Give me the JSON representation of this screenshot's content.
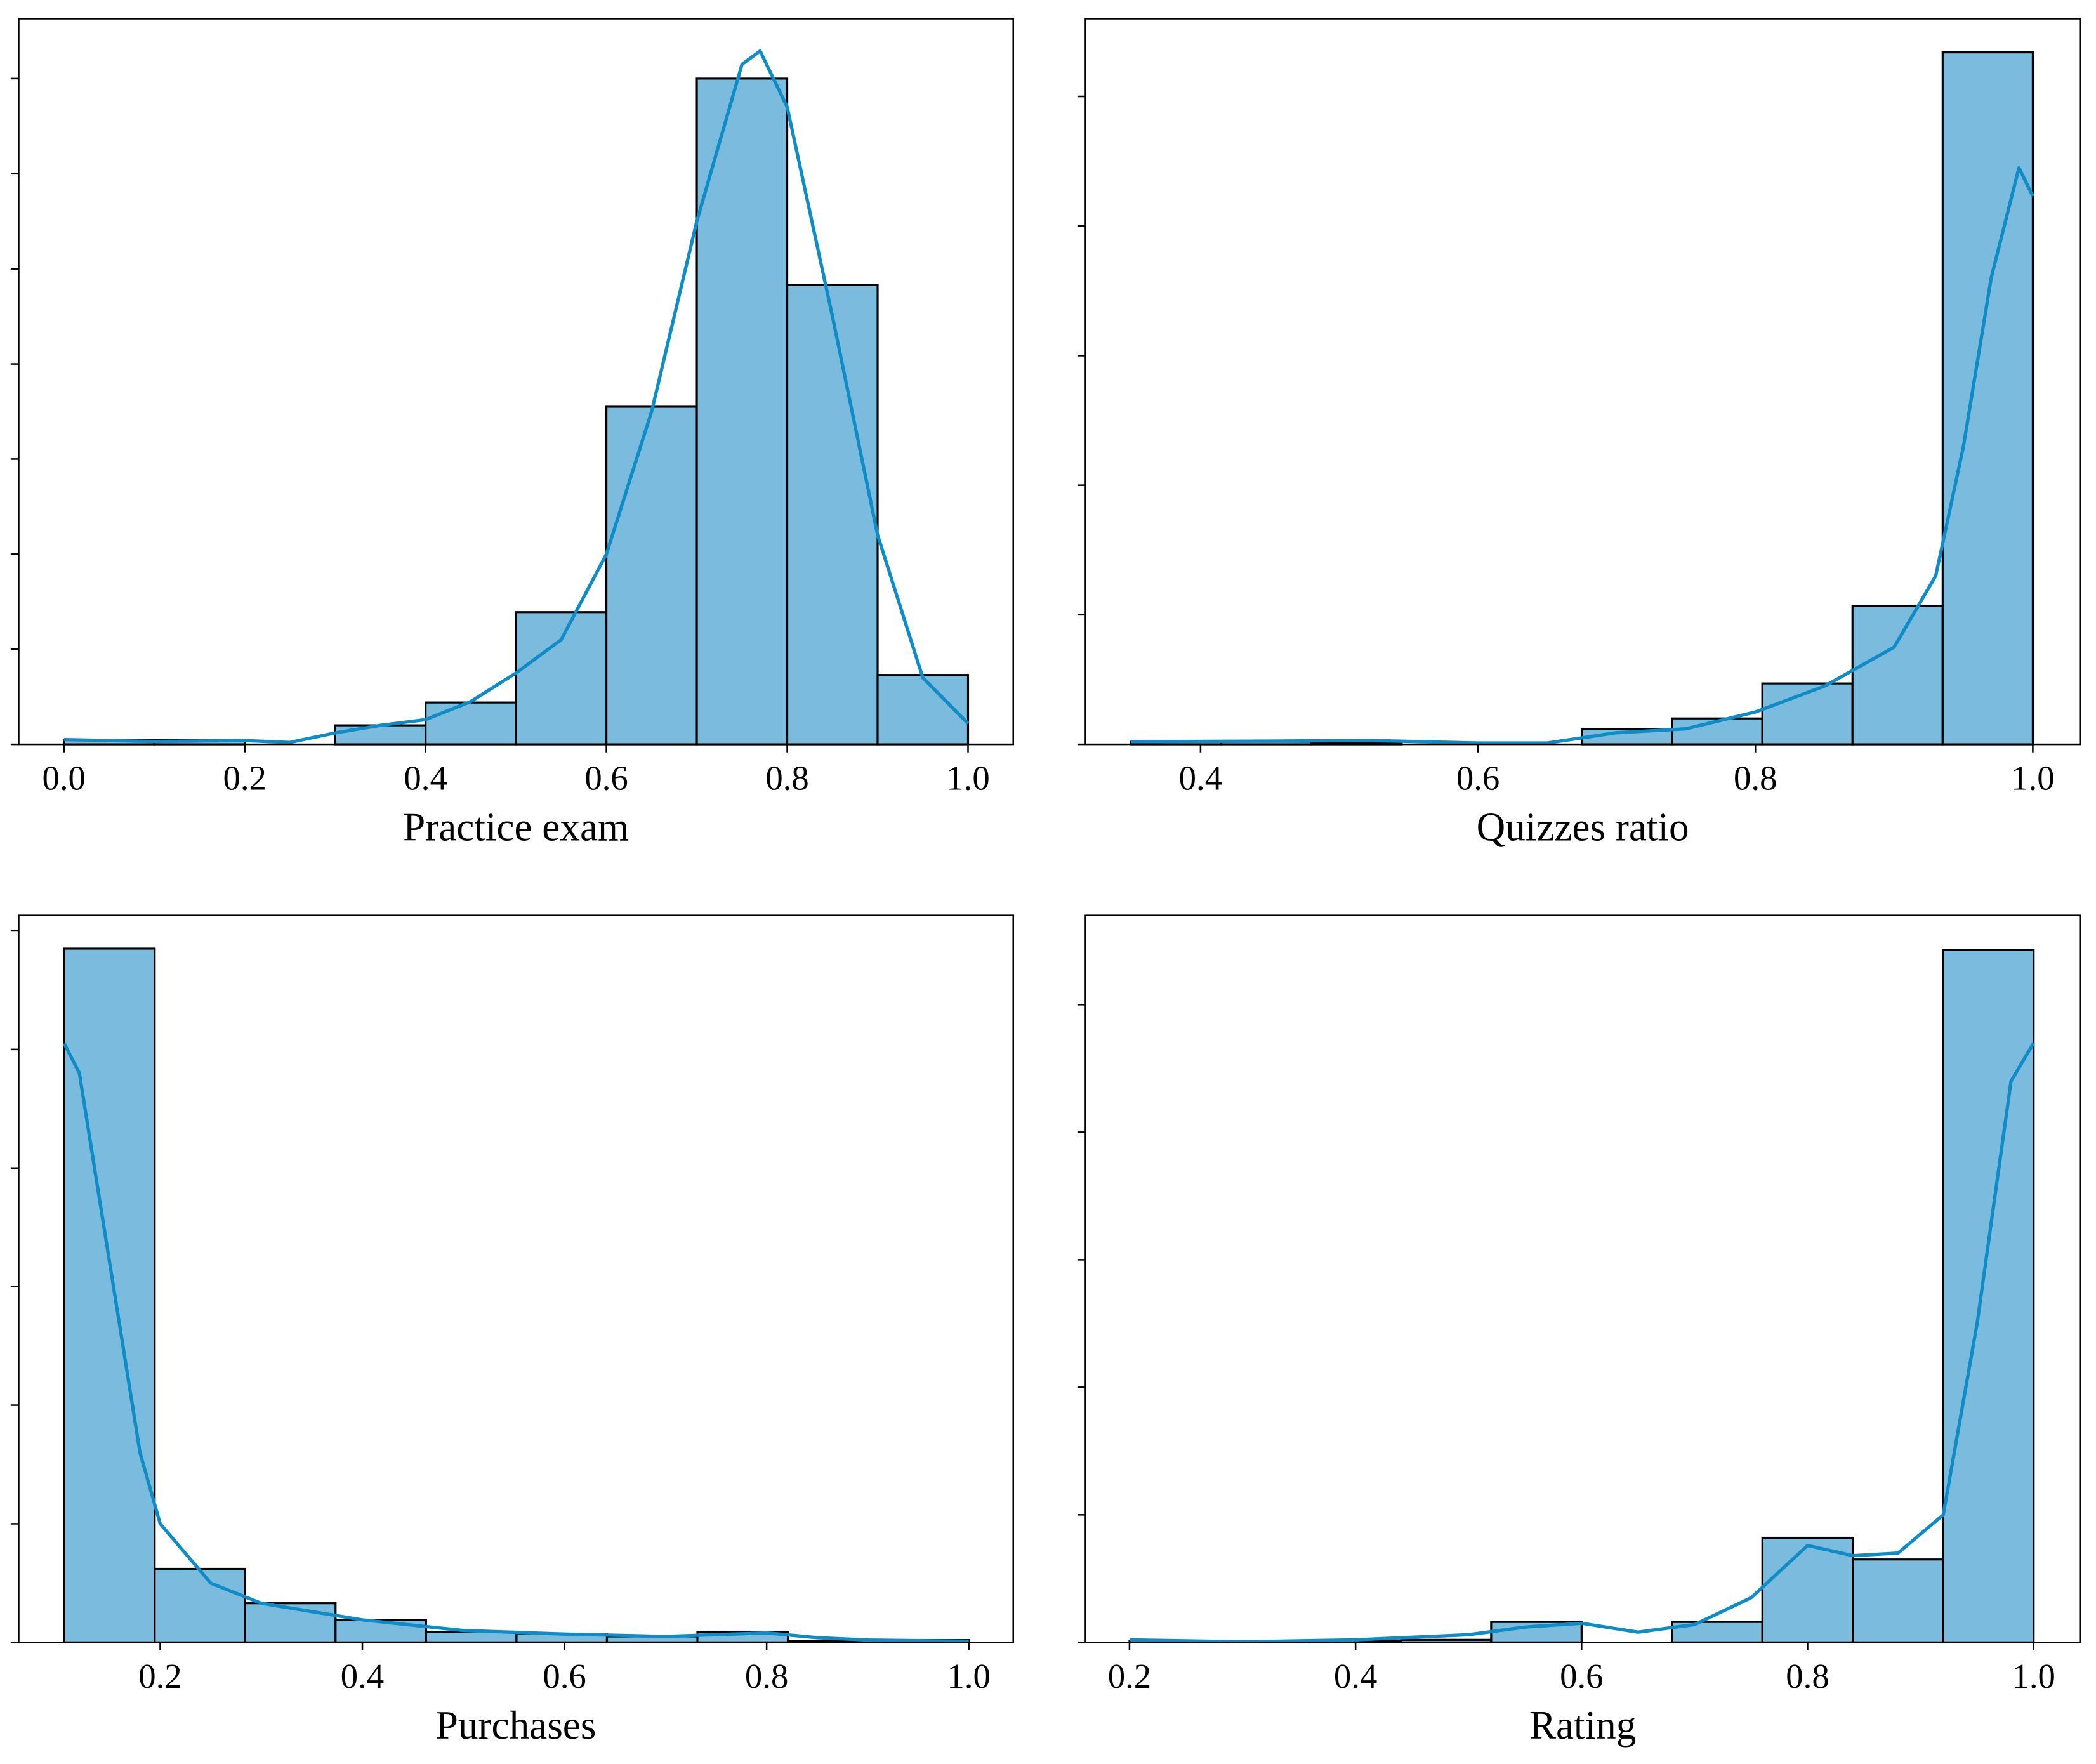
{
  "chart_data": [
    {
      "type": "histogram",
      "xlabel": "Practice exam",
      "color": "#7bbbdd",
      "edgecolor": "#000000",
      "bins": [
        0,
        0.1,
        0.2,
        0.3,
        0.4,
        0.5,
        0.6,
        0.7,
        0.8,
        0.9,
        1.0
      ],
      "counts": [
        0.5,
        0.5,
        0,
        2,
        4.4,
        13.9,
        35.5,
        70,
        48.3,
        7.3
      ],
      "kde": {
        "color": "#0f8bc6",
        "x": [
          0,
          0.1,
          0.2,
          0.25,
          0.3,
          0.35,
          0.4,
          0.45,
          0.5,
          0.55,
          0.6,
          0.65,
          0.7,
          0.75,
          0.77,
          0.8,
          0.85,
          0.9,
          0.95,
          1.0
        ],
        "y": [
          0.5,
          0.3,
          0.4,
          0.2,
          1.2,
          2,
          2.6,
          4.5,
          7.5,
          11,
          20,
          35,
          55,
          71.5,
          72.9,
          67,
          45,
          22,
          7,
          2.2
        ]
      },
      "xlim": [
        -0.05,
        1.05
      ],
      "ylim": [
        0,
        76.3
      ],
      "xticks": [
        {
          "value": 0,
          "label": "0.0"
        },
        0.2,
        0.4,
        0.6,
        0.8,
        {
          "value": 1,
          "label": "1.0"
        }
      ],
      "yticks": [
        0,
        10,
        20,
        30,
        40,
        50,
        60,
        70
      ]
    },
    {
      "type": "histogram",
      "xlabel": "Quizzes ratio",
      "color": "#7bbbdd",
      "edgecolor": "#000000",
      "bins": [
        0.35,
        0.415,
        0.48,
        0.545,
        0.61,
        0.675,
        0.74,
        0.805,
        0.87,
        0.935,
        1.0
      ],
      "counts": [
        0.2,
        0.2,
        0.1,
        0,
        0,
        1.2,
        2,
        4.7,
        10.7,
        53.4
      ],
      "kde": {
        "color": "#0f8bc6",
        "x": [
          0.35,
          0.45,
          0.52,
          0.6,
          0.65,
          0.7,
          0.75,
          0.8,
          0.85,
          0.9,
          0.93,
          0.95,
          0.97,
          0.99,
          1.0
        ],
        "y": [
          0.2,
          0.25,
          0.3,
          0.1,
          0.1,
          0.9,
          1.2,
          2.5,
          4.5,
          7.5,
          13,
          23,
          36,
          44.5,
          42.3
        ]
      },
      "xlim": [
        0.317,
        1.034
      ],
      "ylim": [
        0,
        56
      ],
      "xticks": [
        0.4,
        0.6,
        0.8,
        {
          "value": 1,
          "label": "1.0"
        }
      ],
      "yticks": [
        0,
        10,
        20,
        30,
        40,
        50
      ]
    },
    {
      "type": "histogram",
      "xlabel": "Purchases",
      "color": "#7bbbdd",
      "edgecolor": "#000000",
      "bins": [
        0.105,
        0.1945,
        0.284,
        0.3735,
        0.463,
        0.5525,
        0.642,
        0.7315,
        0.821,
        0.9105,
        1.0
      ],
      "counts": [
        58.5,
        6.2,
        3.3,
        1.9,
        0.9,
        0.7,
        0.5,
        0.9,
        0.1,
        0.2
      ],
      "kde": {
        "color": "#0f8bc6",
        "x": [
          0.105,
          0.12,
          0.15,
          0.18,
          0.2,
          0.25,
          0.3,
          0.4,
          0.5,
          0.6,
          0.7,
          0.8,
          0.85,
          0.9,
          1.0
        ],
        "y": [
          50.5,
          48,
          32,
          16,
          10,
          5,
          3.3,
          1.9,
          1,
          0.7,
          0.5,
          0.8,
          0.4,
          0.2,
          0.1
        ]
      },
      "xlim": [
        0.06,
        1.044
      ],
      "ylim": [
        0,
        61.3
      ],
      "xticks": [
        0.2,
        0.4,
        0.6,
        0.8,
        {
          "value": 1,
          "label": "1.0"
        }
      ],
      "yticks": [
        0,
        10,
        20,
        30,
        40,
        50,
        60
      ]
    },
    {
      "type": "histogram",
      "xlabel": "Rating",
      "color": "#7bbbdd",
      "edgecolor": "#000000",
      "bins": [
        0.2,
        0.28,
        0.36,
        0.44,
        0.52,
        0.6,
        0.68,
        0.76,
        0.84,
        0.92,
        1.0
      ],
      "counts": [
        0.1,
        0,
        0.1,
        0.2,
        1.6,
        0,
        1.6,
        8.2,
        6.5,
        54.3
      ],
      "kde": {
        "color": "#0f8bc6",
        "x": [
          0.2,
          0.3,
          0.4,
          0.5,
          0.55,
          0.6,
          0.65,
          0.7,
          0.75,
          0.8,
          0.84,
          0.88,
          0.92,
          0.95,
          0.98,
          1.0
        ],
        "y": [
          0.2,
          0.05,
          0.2,
          0.6,
          1.2,
          1.5,
          0.8,
          1.4,
          3.5,
          7.6,
          6.8,
          7,
          10,
          25,
          44,
          47
        ]
      },
      "xlim": [
        0.161,
        1.041
      ],
      "ylim": [
        0,
        57
      ],
      "xticks": [
        0.2,
        0.4,
        0.6,
        0.8,
        {
          "value": 1,
          "label": "1.0"
        }
      ],
      "yticks": [
        0,
        10,
        20,
        30,
        40,
        50
      ]
    }
  ]
}
